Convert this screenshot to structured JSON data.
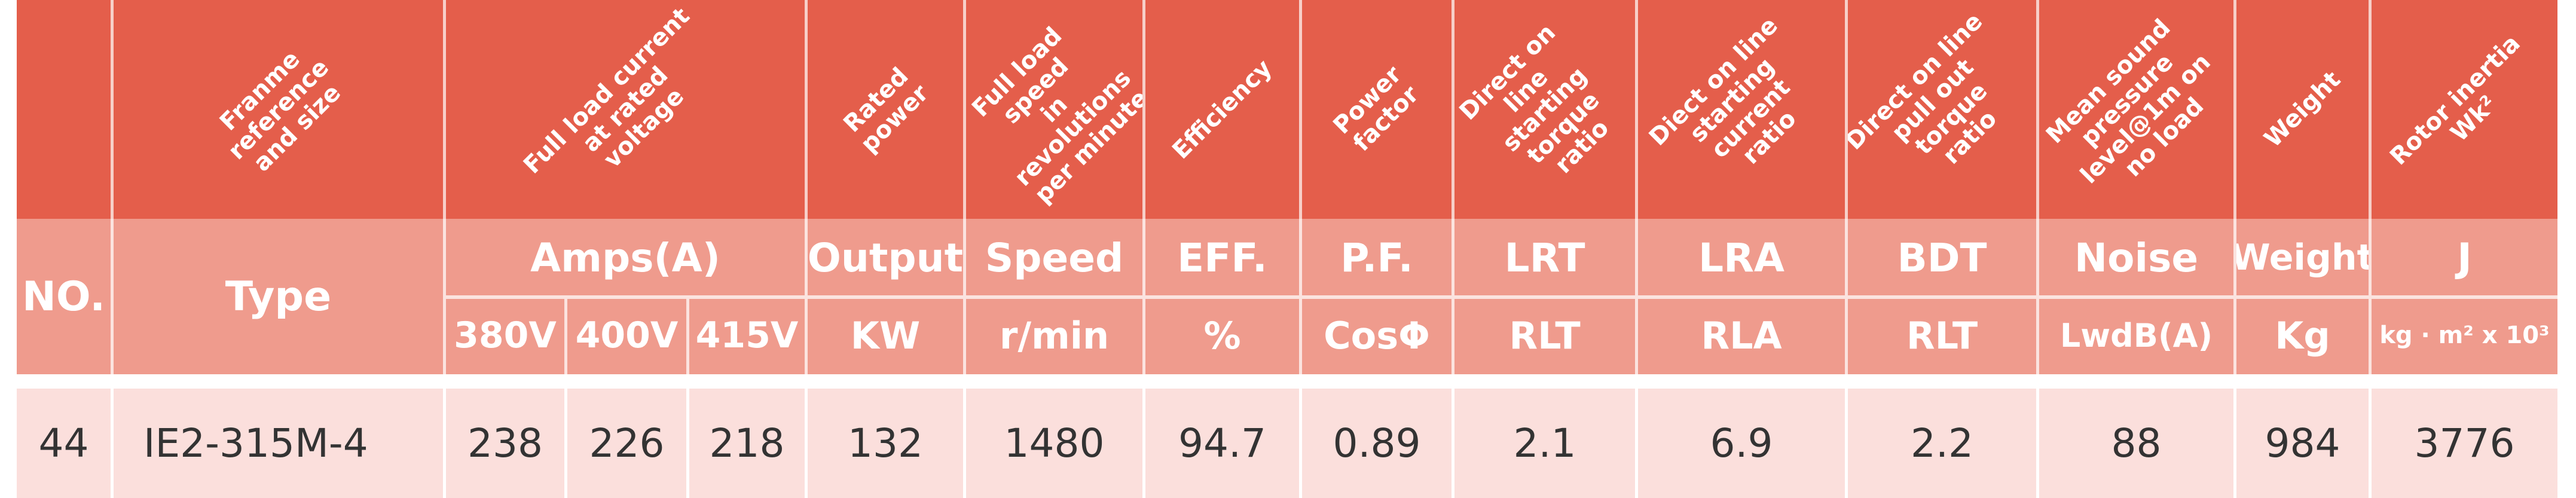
{
  "headers": [
    {
      "key": "no",
      "rotated": "",
      "code": "NO.",
      "unit": ""
    },
    {
      "key": "type",
      "rotated": "Franme\nreference\nand size",
      "code": "Type",
      "unit": ""
    },
    {
      "key": "amps",
      "rotated": "Full load current\nat rated\nvoltage",
      "code": "Amps(A)",
      "unit": "",
      "sub_units": [
        "380V",
        "400V",
        "415V"
      ]
    },
    {
      "key": "output",
      "rotated": "Rated power",
      "code": "Output",
      "unit": "KW"
    },
    {
      "key": "speed",
      "rotated": "Full load speed\nin revolutions\nper minute",
      "code": "Speed",
      "unit": "r/min"
    },
    {
      "key": "eff",
      "rotated": "Efficiency",
      "code": "EFF.",
      "unit": "%"
    },
    {
      "key": "pf",
      "rotated": "Power factor",
      "code": "P.F.",
      "unit": "CosΦ"
    },
    {
      "key": "lrt",
      "rotated": "Direct on line\nstarting torque\nratio",
      "code": "LRT",
      "unit": "RLT"
    },
    {
      "key": "lra",
      "rotated": "Diect on line\nstarting current\nratio",
      "code": "LRA",
      "unit": "RLA"
    },
    {
      "key": "bdt",
      "rotated": "Direct on line\npull out torque\nratio",
      "code": "BDT",
      "unit": "RLT"
    },
    {
      "key": "noise",
      "rotated": "Mean sound\npressure\nlevel@1m on\nno load",
      "code": "Noise",
      "unit": "LwdB(A)"
    },
    {
      "key": "weight",
      "rotated": "Weight",
      "code": "Weight",
      "unit": "Kg"
    },
    {
      "key": "j",
      "rotated": "Rotor inertia\nWk²",
      "code": "J",
      "unit": "kg · m² x 10³"
    }
  ],
  "row": [
    "44",
    "IE2-315M-4",
    "238",
    "226",
    "218",
    "132",
    "1480",
    "94.7",
    "0.89",
    "2.1",
    "6.9",
    "2.2",
    "88",
    "984",
    "3776"
  ]
}
